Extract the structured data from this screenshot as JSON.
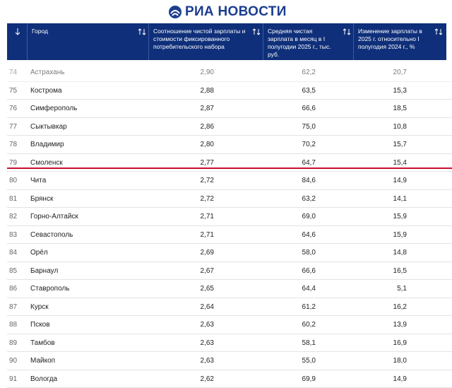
{
  "header": {
    "logo": "РИА НОВОСТИ"
  },
  "table": {
    "columns": [
      "Город",
      "Соотношение чистой зарплаты и стоимости фиксированного потребительского набора",
      "Средняя чистая зарплата в месяц в I полугодии 2025 г., тыс. руб.",
      "Изменение зарплаты в 2025 г. относительно I полугодия 2024 г., %"
    ],
    "rows": [
      [
        "74",
        "Астрахань",
        "2,90",
        "62,2",
        "20,7"
      ],
      [
        "75",
        "Кострома",
        "2,88",
        "63,5",
        "15,3"
      ],
      [
        "76",
        "Симферополь",
        "2,87",
        "66,6",
        "18,5"
      ],
      [
        "77",
        "Сыктывкар",
        "2,86",
        "75,0",
        "10,8"
      ],
      [
        "78",
        "Владимир",
        "2,80",
        "70,2",
        "15,7"
      ],
      [
        "79",
        "Смоленск",
        "2,77",
        "64,7",
        "15,4"
      ],
      [
        "80",
        "Чита",
        "2,72",
        "84,6",
        "14,9"
      ],
      [
        "81",
        "Брянск",
        "2,72",
        "63,2",
        "14,1"
      ],
      [
        "82",
        "Горно-Алтайск",
        "2,71",
        "69,0",
        "15,9"
      ],
      [
        "83",
        "Севастополь",
        "2,71",
        "64,6",
        "15,9"
      ],
      [
        "84",
        "Орёл",
        "2,69",
        "58,0",
        "14,8"
      ],
      [
        "85",
        "Барнаул",
        "2,67",
        "66,6",
        "16,5"
      ],
      [
        "86",
        "Ставрополь",
        "2,65",
        "64,4",
        "5,1"
      ],
      [
        "87",
        "Курск",
        "2,64",
        "61,2",
        "16,2"
      ],
      [
        "88",
        "Псков",
        "2,63",
        "60,2",
        "13,9"
      ],
      [
        "89",
        "Тамбов",
        "2,63",
        "58,1",
        "16,9"
      ],
      [
        "90",
        "Майкоп",
        "2,63",
        "55,0",
        "18,0"
      ],
      [
        "91",
        "Вологда",
        "2,62",
        "69,9",
        "14,9"
      ]
    ]
  }
}
